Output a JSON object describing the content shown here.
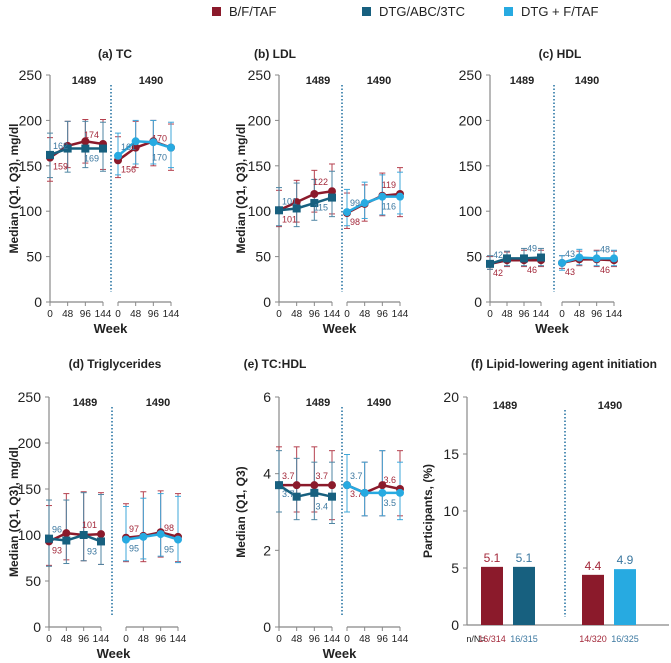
{
  "legend": {
    "items": [
      {
        "label": "B/F/TAF",
        "color": "#8b1a2b"
      },
      {
        "label": "DTG/ABC/3TC",
        "color": "#17607f"
      },
      {
        "label": "DTG + F/TAF",
        "color": "#27aae1"
      }
    ]
  },
  "chart_data": [
    {
      "id": "a",
      "type": "line",
      "title": "(a) TC",
      "ylabel": "Median (Q1, Q3), mg/dl",
      "xlabel": "Week",
      "ylim": [
        0,
        250
      ],
      "yticks": [
        0,
        50,
        100,
        150,
        200,
        250
      ],
      "x": [
        0,
        48,
        96,
        144
      ],
      "studies": [
        {
          "name": "1489",
          "series": [
            {
              "name": "B/F/TAF",
              "values": [
                159,
                172,
                177,
                174
              ],
              "q1": [
                133,
                148,
                153,
                146
              ],
              "q3": [
                181,
                199,
                201,
                201
              ],
              "labels": [
                {
                  "i": 0,
                  "text": "159",
                  "pos": "below"
                },
                {
                  "i": 3,
                  "text": "174",
                  "pos": "above-left"
                }
              ]
            },
            {
              "name": "DTG/ABC/3TC",
              "values": [
                162,
                169,
                169,
                169
              ],
              "q1": [
                137,
                143,
                148,
                144
              ],
              "q3": [
                186,
                199,
                199,
                198
              ],
              "labels": [
                {
                  "i": 0,
                  "text": "162",
                  "pos": "above"
                },
                {
                  "i": 3,
                  "text": "169",
                  "pos": "below-left"
                }
              ]
            }
          ]
        },
        {
          "name": "1490",
          "series": [
            {
              "name": "B/F/TAF",
              "values": [
                156,
                170,
                177,
                170
              ],
              "q1": [
                137,
                148,
                150,
                145
              ],
              "q3": [
                182,
                199,
                200,
                196
              ],
              "labels": [
                {
                  "i": 0,
                  "text": "156",
                  "pos": "below"
                },
                {
                  "i": 3,
                  "text": "170",
                  "pos": "above-left"
                }
              ]
            },
            {
              "name": "DTG + F/TAF",
              "values": [
                161,
                177,
                176,
                170
              ],
              "q1": [
                140,
                152,
                152,
                148
              ],
              "q3": [
                186,
                200,
                200,
                198
              ],
              "labels": [
                {
                  "i": 0,
                  "text": "161",
                  "pos": "above"
                },
                {
                  "i": 3,
                  "text": "170",
                  "pos": "below-left"
                }
              ]
            }
          ]
        }
      ]
    },
    {
      "id": "b",
      "type": "line",
      "title": "(b) LDL",
      "ylabel": "Median (Q1, Q3), mg/dl",
      "xlabel": "Week",
      "ylim": [
        0,
        250
      ],
      "yticks": [
        0,
        50,
        100,
        150,
        200,
        250
      ],
      "x": [
        0,
        48,
        96,
        144
      ],
      "studies": [
        {
          "name": "1489",
          "series": [
            {
              "name": "B/F/TAF",
              "values": [
                101,
                110,
                119,
                122
              ],
              "q1": [
                83,
                88,
                99,
                97
              ],
              "q3": [
                123,
                134,
                145,
                152
              ],
              "labels": [
                {
                  "i": 0,
                  "text": "101",
                  "pos": "below"
                },
                {
                  "i": 3,
                  "text": "122",
                  "pos": "above-left"
                }
              ]
            },
            {
              "name": "DTG/ABC/3TC",
              "values": [
                101,
                103,
                109,
                115
              ],
              "q1": [
                84,
                83,
                90,
                94
              ],
              "q3": [
                126,
                131,
                135,
                144
              ],
              "labels": [
                {
                  "i": 0,
                  "text": "101",
                  "pos": "above"
                },
                {
                  "i": 3,
                  "text": "115",
                  "pos": "below-left"
                }
              ]
            }
          ]
        },
        {
          "name": "1490",
          "series": [
            {
              "name": "B/F/TAF",
              "values": [
                98,
                108,
                117,
                119
              ],
              "q1": [
                81,
                89,
                95,
                94
              ],
              "q3": [
                120,
                129,
                142,
                148
              ],
              "labels": [
                {
                  "i": 0,
                  "text": "98",
                  "pos": "below"
                },
                {
                  "i": 3,
                  "text": "119",
                  "pos": "above-left"
                }
              ]
            },
            {
              "name": "DTG + F/TAF",
              "values": [
                99,
                109,
                116,
                116
              ],
              "q1": [
                84,
                92,
                96,
                97
              ],
              "q3": [
                124,
                132,
                140,
                143
              ],
              "labels": [
                {
                  "i": 0,
                  "text": "99",
                  "pos": "above"
                },
                {
                  "i": 3,
                  "text": "116",
                  "pos": "below-left"
                }
              ]
            }
          ]
        }
      ]
    },
    {
      "id": "c",
      "type": "line",
      "title": "(c) HDL",
      "ylabel": "",
      "xlabel": "Week",
      "ylim": [
        0,
        250
      ],
      "yticks": [
        0,
        50,
        100,
        150,
        200,
        250
      ],
      "x": [
        0,
        48,
        96,
        144
      ],
      "studies": [
        {
          "name": "1489",
          "series": [
            {
              "name": "B/F/TAF",
              "values": [
                42,
                46,
                46,
                46
              ],
              "q1": [
                36,
                39,
                39,
                39
              ],
              "q3": [
                50,
                55,
                57,
                57
              ],
              "labels": [
                {
                  "i": 0,
                  "text": "42",
                  "pos": "below"
                },
                {
                  "i": 3,
                  "text": "46",
                  "pos": "below-left"
                }
              ]
            },
            {
              "name": "DTG/ABC/3TC",
              "values": [
                42,
                48,
                48,
                49
              ],
              "q1": [
                36,
                40,
                40,
                40
              ],
              "q3": [
                51,
                56,
                59,
                59
              ],
              "labels": [
                {
                  "i": 0,
                  "text": "42",
                  "pos": "above"
                },
                {
                  "i": 3,
                  "text": "49",
                  "pos": "above-left"
                }
              ]
            }
          ]
        },
        {
          "name": "1490",
          "series": [
            {
              "name": "B/F/TAF",
              "values": [
                43,
                47,
                47,
                46
              ],
              "q1": [
                37,
                40,
                39,
                39
              ],
              "q3": [
                51,
                56,
                57,
                56
              ],
              "labels": [
                {
                  "i": 0,
                  "text": "43",
                  "pos": "below"
                },
                {
                  "i": 3,
                  "text": "46",
                  "pos": "below-left"
                }
              ]
            },
            {
              "name": "DTG + F/TAF",
              "values": [
                43,
                49,
                48,
                48
              ],
              "q1": [
                35,
                41,
                40,
                40
              ],
              "q3": [
                51,
                58,
                56,
                57
              ],
              "labels": [
                {
                  "i": 0,
                  "text": "43",
                  "pos": "above"
                },
                {
                  "i": 3,
                  "text": "48",
                  "pos": "above-left"
                }
              ]
            }
          ]
        }
      ]
    },
    {
      "id": "d",
      "type": "line",
      "title": "(d) Triglycerides",
      "ylabel": "Median (Q1, Q3), mg/dl",
      "xlabel": "Week",
      "ylim": [
        0,
        250
      ],
      "yticks": [
        0,
        50,
        100,
        150,
        200,
        250
      ],
      "x": [
        0,
        48,
        96,
        144
      ],
      "studies": [
        {
          "name": "1489",
          "series": [
            {
              "name": "B/F/TAF",
              "values": [
                93,
                102,
                100,
                101
              ],
              "q1": [
                67,
                73,
                72,
                68
              ],
              "q3": [
                132,
                145,
                147,
                146
              ],
              "labels": [
                {
                  "i": 0,
                  "text": "93",
                  "pos": "below"
                },
                {
                  "i": 3,
                  "text": "101",
                  "pos": "above-left"
                }
              ]
            },
            {
              "name": "DTG/ABC/3TC",
              "values": [
                96,
                94,
                100,
                93
              ],
              "q1": [
                66,
                69,
                72,
                68
              ],
              "q3": [
                138,
                138,
                146,
                144
              ],
              "labels": [
                {
                  "i": 0,
                  "text": "96",
                  "pos": "above"
                },
                {
                  "i": 3,
                  "text": "93",
                  "pos": "below-left"
                }
              ]
            }
          ]
        },
        {
          "name": "1490",
          "series": [
            {
              "name": "B/F/TAF",
              "values": [
                97,
                99,
                103,
                98
              ],
              "q1": [
                71,
                71,
                76,
                71
              ],
              "q3": [
                134,
                147,
                148,
                145
              ],
              "labels": [
                {
                  "i": 0,
                  "text": "97",
                  "pos": "above"
                },
                {
                  "i": 3,
                  "text": "98",
                  "pos": "above-left"
                }
              ]
            },
            {
              "name": "DTG + F/TAF",
              "values": [
                95,
                98,
                101,
                95
              ],
              "q1": [
                72,
                74,
                77,
                70
              ],
              "q3": [
                131,
                140,
                145,
                142
              ],
              "labels": [
                {
                  "i": 0,
                  "text": "95",
                  "pos": "below"
                },
                {
                  "i": 3,
                  "text": "95",
                  "pos": "below-left"
                }
              ]
            }
          ]
        }
      ]
    },
    {
      "id": "e",
      "type": "line",
      "title": "(e) TC:HDL",
      "ylabel": "Median (Q1, Q3)",
      "xlabel": "Week",
      "ylim": [
        0,
        6
      ],
      "yticks": [
        0,
        2,
        4,
        6
      ],
      "x": [
        0,
        48,
        96,
        144
      ],
      "studies": [
        {
          "name": "1489",
          "series": [
            {
              "name": "B/F/TAF",
              "values": [
                3.7,
                3.7,
                3.7,
                3.7
              ],
              "q1": [
                3.0,
                3.0,
                3.0,
                2.8
              ],
              "q3": [
                4.7,
                4.7,
                4.7,
                4.6
              ],
              "labels": [
                {
                  "i": 0,
                  "text": "3.7",
                  "pos": "above"
                },
                {
                  "i": 3,
                  "text": "3.7",
                  "pos": "above-left"
                }
              ]
            },
            {
              "name": "DTG/ABC/3TC",
              "values": [
                3.7,
                3.4,
                3.5,
                3.4
              ],
              "q1": [
                3.0,
                2.8,
                2.8,
                2.7
              ],
              "q3": [
                4.6,
                4.4,
                4.3,
                4.3
              ],
              "labels": [
                {
                  "i": 0,
                  "text": "3.7",
                  "pos": "below"
                },
                {
                  "i": 3,
                  "text": "3.4",
                  "pos": "below-left"
                }
              ]
            }
          ]
        },
        {
          "name": "1490",
          "series": [
            {
              "name": "B/F/TAF",
              "values": [
                3.7,
                3.5,
                3.7,
                3.6
              ],
              "q1": [
                3.0,
                2.9,
                2.9,
                2.9
              ],
              "q3": [
                4.5,
                4.3,
                4.6,
                4.6
              ],
              "labels": [
                {
                  "i": 0,
                  "text": "3.7",
                  "pos": "below"
                },
                {
                  "i": 3,
                  "text": "3.6",
                  "pos": "above-left"
                }
              ]
            },
            {
              "name": "DTG + F/TAF",
              "values": [
                3.7,
                3.5,
                3.5,
                3.5
              ],
              "q1": [
                3.0,
                2.9,
                2.9,
                2.8
              ],
              "q3": [
                4.5,
                4.3,
                4.6,
                4.3
              ],
              "labels": [
                {
                  "i": 0,
                  "text": "3.7",
                  "pos": "above"
                },
                {
                  "i": 3,
                  "text": "3.5",
                  "pos": "below-left"
                }
              ]
            }
          ]
        }
      ]
    },
    {
      "id": "f",
      "type": "bar",
      "title": "(f) Lipid-lowering agent initiation",
      "ylabel": "Participants, (%)",
      "xlabel": "",
      "ylim": [
        0,
        20
      ],
      "yticks": [
        0,
        5,
        10,
        15,
        20
      ],
      "nN_label": "n/N=",
      "groups": [
        {
          "name": "1489",
          "bars": [
            {
              "series": "B/F/TAF",
              "value": 5.1,
              "label": "5.1",
              "nN": "16/314"
            },
            {
              "series": "DTG/ABC/3TC",
              "value": 5.1,
              "label": "5.1",
              "nN": "16/315"
            }
          ]
        },
        {
          "name": "1490",
          "bars": [
            {
              "series": "B/F/TAF",
              "value": 4.4,
              "label": "4.4",
              "nN": "14/320"
            },
            {
              "series": "DTG + F/TAF",
              "value": 4.9,
              "label": "4.9",
              "nN": "16/325"
            }
          ]
        }
      ]
    }
  ]
}
